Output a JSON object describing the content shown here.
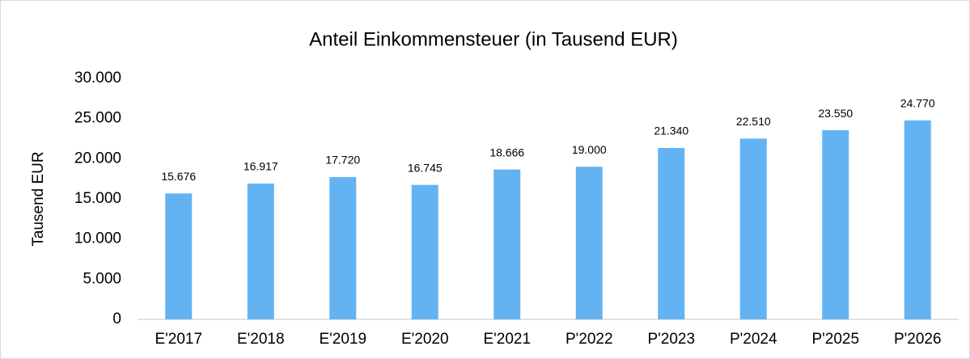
{
  "chart_data": {
    "type": "bar",
    "title": "Anteil Einkommensteuer (in Tausend EUR)",
    "y_label": "Tausend EUR",
    "categories": [
      "E'2017",
      "E'2018",
      "E'2019",
      "E'2020",
      "E'2021",
      "P'2022",
      "P'2023",
      "P'2024",
      "P'2025",
      "P'2026"
    ],
    "values": [
      15676,
      16917,
      17720,
      16745,
      18666,
      19000,
      21340,
      22510,
      23550,
      24770
    ],
    "value_labels": [
      "15.676",
      "16.917",
      "17.720",
      "16.745",
      "18.666",
      "19.000",
      "21.340",
      "22.510",
      "23.550",
      "24.770"
    ],
    "color": "#63b3f3",
    "ylim": [
      0,
      30000
    ],
    "yticks": [
      0,
      {
        "value": 5000,
        "label": "5.000"
      },
      {
        "value": 10000,
        "label": "10.000"
      },
      {
        "value": 15000,
        "label": "15.000"
      },
      {
        "value": 20000,
        "label": "20.000"
      },
      {
        "value": 25000,
        "label": "25.000"
      },
      {
        "value": 30000,
        "label": "30.000"
      }
    ],
    "grid": false
  }
}
